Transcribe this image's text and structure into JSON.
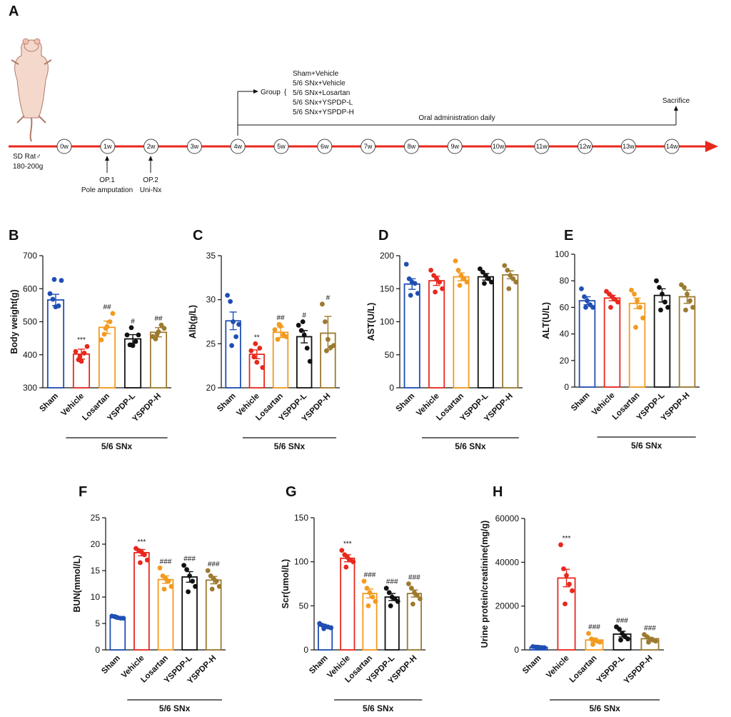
{
  "colors": {
    "sham": "#1f4fb3",
    "vehicle": "#e8281d",
    "losartan": "#f39a1f",
    "yspdp_l": "#111111",
    "yspdp_h": "#9c7a2f",
    "axis": "#111111",
    "timeline": "#e8281d"
  },
  "timeline": {
    "panel_label": "A",
    "weeks": [
      "0w",
      "1w",
      "2w",
      "3w",
      "4w",
      "5w",
      "6w",
      "7w",
      "8w",
      "9w",
      "10w",
      "11w",
      "12w",
      "13w",
      "14w"
    ],
    "rat_label": "SD Rat♂",
    "rat_weight": "180-200g",
    "op1_line1": "OP.1",
    "op1_line2": "Pole amputation",
    "op2_line1": "OP.2",
    "op2_line2": "Uni-Nx",
    "group_label": "Group",
    "groups": [
      "Sham+Vehicle",
      "5/6 SNx+Vehicle",
      "5/6 SNx+Losartan",
      "5/6 SNx+YSPDP-L",
      "5/6 SNx+YSPDP-H"
    ],
    "oral_label": "Oral administration daily",
    "sacrifice_label": "Sacrifice"
  },
  "chart_data": [
    {
      "panel": "B",
      "type": "bar",
      "ylabel": "Body weight(g)",
      "ylim": [
        300,
        700
      ],
      "yticks": [
        "300",
        "400",
        "500",
        "600",
        "700"
      ],
      "categories": [
        "Sham",
        "Vehicle",
        "Losartan",
        "YSPDP-L",
        "YSPDP-H"
      ],
      "values": [
        566,
        402,
        483,
        448,
        468
      ],
      "errors": [
        17,
        15,
        19,
        13,
        14
      ],
      "points": [
        [
          585,
          568,
          545,
          548,
          625,
          628
        ],
        [
          410,
          385,
          380,
          405,
          425,
          395
        ],
        [
          445,
          462,
          485,
          500,
          525,
          480
        ],
        [
          460,
          430,
          428,
          440,
          460,
          482
        ],
        [
          455,
          448,
          470,
          490,
          480,
          462
        ]
      ],
      "sig": [
        "",
        "***",
        "##",
        "#",
        "##"
      ],
      "group_label": "5/6 SNx"
    },
    {
      "panel": "C",
      "type": "bar",
      "ylabel": "Alb(g/L)",
      "ylim": [
        20,
        35
      ],
      "yticks": [
        "20",
        "25",
        "30",
        "35"
      ],
      "categories": [
        "Sham",
        "Vehicle",
        "Losartan",
        "YSPDP-L",
        "YSPDP-H"
      ],
      "values": [
        27.6,
        23.8,
        26.3,
        25.8,
        26.2
      ],
      "errors": [
        1.0,
        0.5,
        0.6,
        0.7,
        1.9
      ],
      "points": [
        [
          30.5,
          29.8,
          27.5,
          25.8,
          27.2,
          24.8
        ],
        [
          24.2,
          23.5,
          22.9,
          24.5,
          22.3,
          25.0
        ],
        [
          26.6,
          25.5,
          27.0,
          26.0,
          25.8,
          27.2
        ],
        [
          27.1,
          26.5,
          26.0,
          24.5,
          23.0,
          27.5
        ],
        [
          29.5,
          27.5,
          25.5,
          24.6,
          24.8,
          24.2
        ]
      ],
      "sig": [
        "",
        "**",
        "##",
        "#",
        "#"
      ],
      "group_label": "5/6 SNx"
    },
    {
      "panel": "D",
      "type": "bar",
      "ylabel": "AST(U/L)",
      "ylim": [
        0,
        200
      ],
      "yticks": [
        "0",
        "50",
        "100",
        "150",
        "200"
      ],
      "categories": [
        "Sham",
        "Vehicle",
        "Losartan",
        "YSPDP-L",
        "YSPDP-H"
      ],
      "values": [
        157,
        162,
        168,
        168,
        171
      ],
      "errors": [
        8,
        7,
        6,
        5,
        6
      ],
      "points": [
        [
          187,
          165,
          160,
          158,
          143,
          140
        ],
        [
          178,
          170,
          165,
          160,
          150,
          145
        ],
        [
          192,
          178,
          170,
          165,
          160,
          155
        ],
        [
          180,
          175,
          170,
          165,
          160,
          158
        ],
        [
          185,
          178,
          170,
          165,
          160,
          150
        ]
      ],
      "sig": [
        "",
        "",
        "",
        "",
        ""
      ],
      "group_label": "5/6 SNx"
    },
    {
      "panel": "E",
      "type": "bar",
      "ylabel": "ALT(U/L)",
      "ylim": [
        0,
        100
      ],
      "yticks": [
        "0",
        "20",
        "40",
        "60",
        "80",
        "100"
      ],
      "categories": [
        "Sham",
        "Vehicle",
        "Losartan",
        "YSPDP-L",
        "YSPDP-H"
      ],
      "values": [
        65,
        67,
        63,
        69,
        68
      ],
      "errors": [
        3,
        2,
        4,
        5,
        5
      ],
      "points": [
        [
          74,
          68,
          65,
          62,
          60,
          60
        ],
        [
          72,
          70,
          68,
          66,
          64,
          60
        ],
        [
          73,
          70,
          65,
          60,
          52,
          45
        ],
        [
          80,
          75,
          70,
          64,
          60,
          58
        ],
        [
          77,
          75,
          70,
          65,
          60,
          58
        ]
      ],
      "sig": [
        "",
        "",
        "",
        "",
        ""
      ],
      "group_label": "5/6 SNx"
    },
    {
      "panel": "F",
      "type": "bar",
      "ylabel": "BUN(mmol/L)",
      "ylim": [
        0,
        25
      ],
      "yticks": [
        "0",
        "5",
        "10",
        "15",
        "20",
        "25"
      ],
      "categories": [
        "Sham",
        "Vehicle",
        "Losartan",
        "YSPDP-L",
        "YSPDP-H"
      ],
      "values": [
        6.1,
        18.4,
        13.3,
        13.8,
        13.2
      ],
      "errors": [
        0.2,
        0.6,
        0.7,
        1.0,
        0.7
      ],
      "points": [
        [
          6.4,
          6.3,
          6.1,
          6.0,
          6.0,
          6.2
        ],
        [
          19.2,
          18.8,
          18.5,
          18.0,
          17.0,
          16.5
        ],
        [
          15.5,
          14.0,
          13.5,
          13.0,
          12.0,
          11.5
        ],
        [
          16.0,
          15.2,
          14.0,
          13.0,
          12.0,
          11.0
        ],
        [
          15.0,
          14.0,
          13.5,
          13.0,
          12.0,
          11.5
        ]
      ],
      "sig": [
        "",
        "***",
        "###",
        "###",
        "###"
      ],
      "group_label": "5/6 SNx"
    },
    {
      "panel": "G",
      "type": "bar",
      "ylabel": "Scr(umol/L)",
      "ylim": [
        0,
        150
      ],
      "yticks": [
        "0",
        "50",
        "100",
        "150"
      ],
      "categories": [
        "Sham",
        "Vehicle",
        "Losartan",
        "YSPDP-L",
        "YSPDP-H"
      ],
      "values": [
        27,
        104,
        64,
        60,
        64
      ],
      "errors": [
        1,
        4,
        5,
        4,
        4
      ],
      "points": [
        [
          30,
          28,
          27,
          26,
          25,
          24
        ],
        [
          113,
          108,
          105,
          102,
          100,
          94
        ],
        [
          78,
          70,
          65,
          60,
          55,
          50
        ],
        [
          70,
          65,
          60,
          58,
          55,
          50
        ],
        [
          75,
          70,
          65,
          62,
          58,
          52
        ]
      ],
      "sig": [
        "",
        "***",
        "###",
        "###",
        "###"
      ],
      "group_label": "5/6 SNx"
    },
    {
      "panel": "H",
      "type": "bar",
      "ylabel": "Urine protein/creatinine(mg/g)",
      "ylim": [
        0,
        60000
      ],
      "yticks": [
        "0",
        "20000",
        "40000",
        "60000"
      ],
      "categories": [
        "Sham",
        "Vehicle",
        "Losartan",
        "YSPDP-L",
        "YSPDP-H"
      ],
      "values": [
        1200,
        32800,
        4500,
        7200,
        5100
      ],
      "errors": [
        150,
        4000,
        900,
        1300,
        600
      ],
      "points": [
        [
          1500,
          1300,
          1200,
          1100,
          1000,
          1200
        ],
        [
          48000,
          37000,
          34000,
          30000,
          27000,
          21000
        ],
        [
          7500,
          5000,
          4500,
          4000,
          3500,
          2500
        ],
        [
          10500,
          9500,
          7500,
          6000,
          5000,
          4500
        ],
        [
          7000,
          6000,
          5000,
          4500,
          4000,
          3500
        ]
      ],
      "sig": [
        "",
        "***",
        "###",
        "###",
        "###"
      ],
      "group_label": "5/6 SNx"
    }
  ]
}
